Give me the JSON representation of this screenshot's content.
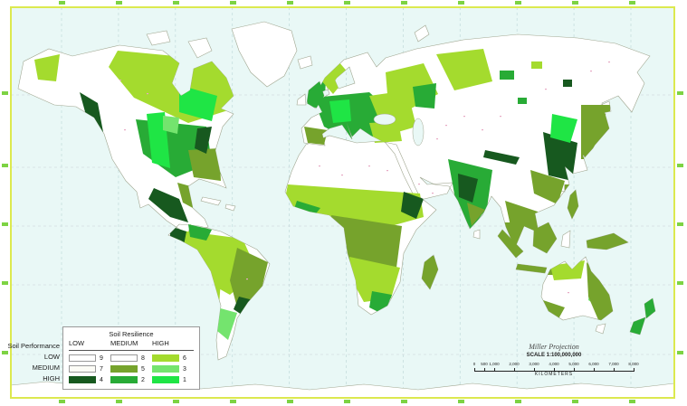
{
  "legend": {
    "resilience_title": "Soil Resilience",
    "performance_title": "Soil Performance",
    "col_headers": [
      "LOW",
      "MEDIUM",
      "HIGH"
    ],
    "row_headers": [
      "LOW",
      "MEDIUM",
      "HIGH"
    ],
    "cells": [
      [
        {
          "value": "9",
          "color": "#FFFFFF"
        },
        {
          "value": "8",
          "color": "#FFFFFF"
        },
        {
          "value": "6",
          "color": "#A4DB2E"
        }
      ],
      [
        {
          "value": "7",
          "color": "#FCFCF6"
        },
        {
          "value": "5",
          "color": "#76A32C"
        },
        {
          "value": "3",
          "color": "#74E46E"
        }
      ],
      [
        {
          "value": "4",
          "color": "#17591F"
        },
        {
          "value": "2",
          "color": "#28AB36"
        },
        {
          "value": "1",
          "color": "#1FE545"
        }
      ]
    ]
  },
  "scalebar": {
    "projection": "Miller Projection",
    "scale_text": "SCALE 1:100,000,000",
    "unit": "KILOMETERS",
    "max_km": 8000,
    "ticks": [
      {
        "label": "0",
        "km": 0
      },
      {
        "label": "500",
        "km": 500
      },
      {
        "label": "1,000",
        "km": 1000
      },
      {
        "label": "2,000",
        "km": 2000
      },
      {
        "label": "3,000",
        "km": 3000
      },
      {
        "label": "4,000",
        "km": 4000
      },
      {
        "label": "5,000",
        "km": 5000
      },
      {
        "label": "6,000",
        "km": 6000
      },
      {
        "label": "7,000",
        "km": 7000
      },
      {
        "label": "8,000",
        "km": 8000
      }
    ]
  },
  "map": {
    "ocean_color": "#E9F8F6",
    "frame_color": "#DCE94F",
    "gridline_color": "#C6DEDE",
    "tick_color": "#6FCF2F",
    "class_colors": {
      "1": "#1FE545",
      "2": "#28AB36",
      "3": "#74E46E",
      "4": "#17591F",
      "5": "#76A32C",
      "6": "#A4DB2E",
      "7": "#FCFCF6",
      "8": "#FFFFFF",
      "9": "#FFFFFF"
    }
  }
}
